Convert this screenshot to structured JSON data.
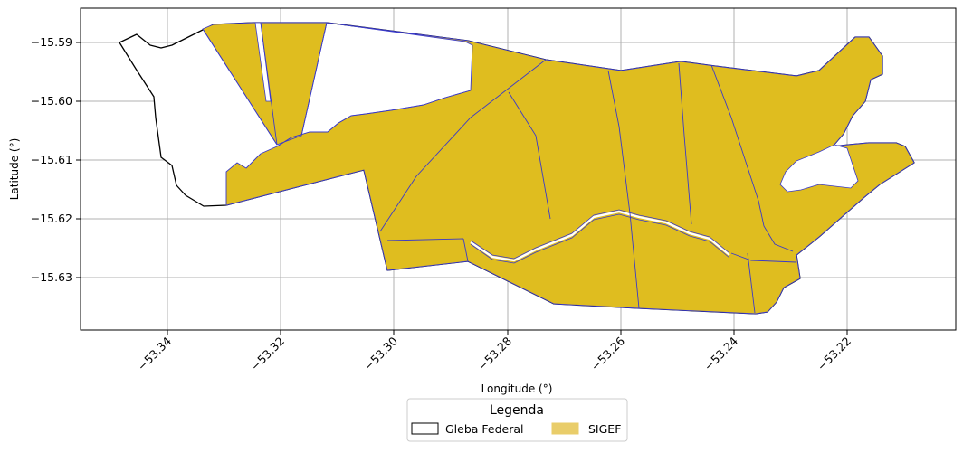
{
  "map": {
    "x_axis_label": "Longitude (°)",
    "y_axis_label": "Latitude (°)",
    "x_ticks": [
      "−53.34",
      "−53.32",
      "−53.30",
      "−53.28",
      "−53.26",
      "−53.24",
      "−53.22"
    ],
    "y_ticks": [
      "−15.59",
      "−15.60",
      "−15.61",
      "−15.62",
      "−15.63"
    ],
    "x_range": [
      -53.349,
      -53.201
    ],
    "y_range": [
      -15.6394,
      -15.5844
    ],
    "grid": true,
    "legend": {
      "title": "Legenda",
      "placement": "bottom-center",
      "items": [
        {
          "label": "Gleba Federal",
          "fill": "#ffffff",
          "edge": "#000000"
        },
        {
          "label": "SIGEF",
          "fill": "#e9cd6a",
          "edge": "#e9cd6a"
        }
      ]
    },
    "colors": {
      "gleba_edge": "#000000",
      "sigef_fill": "#dfbd1f",
      "sigef_edge": "#3a3ac8",
      "grid": "#b0b0b0"
    }
  }
}
